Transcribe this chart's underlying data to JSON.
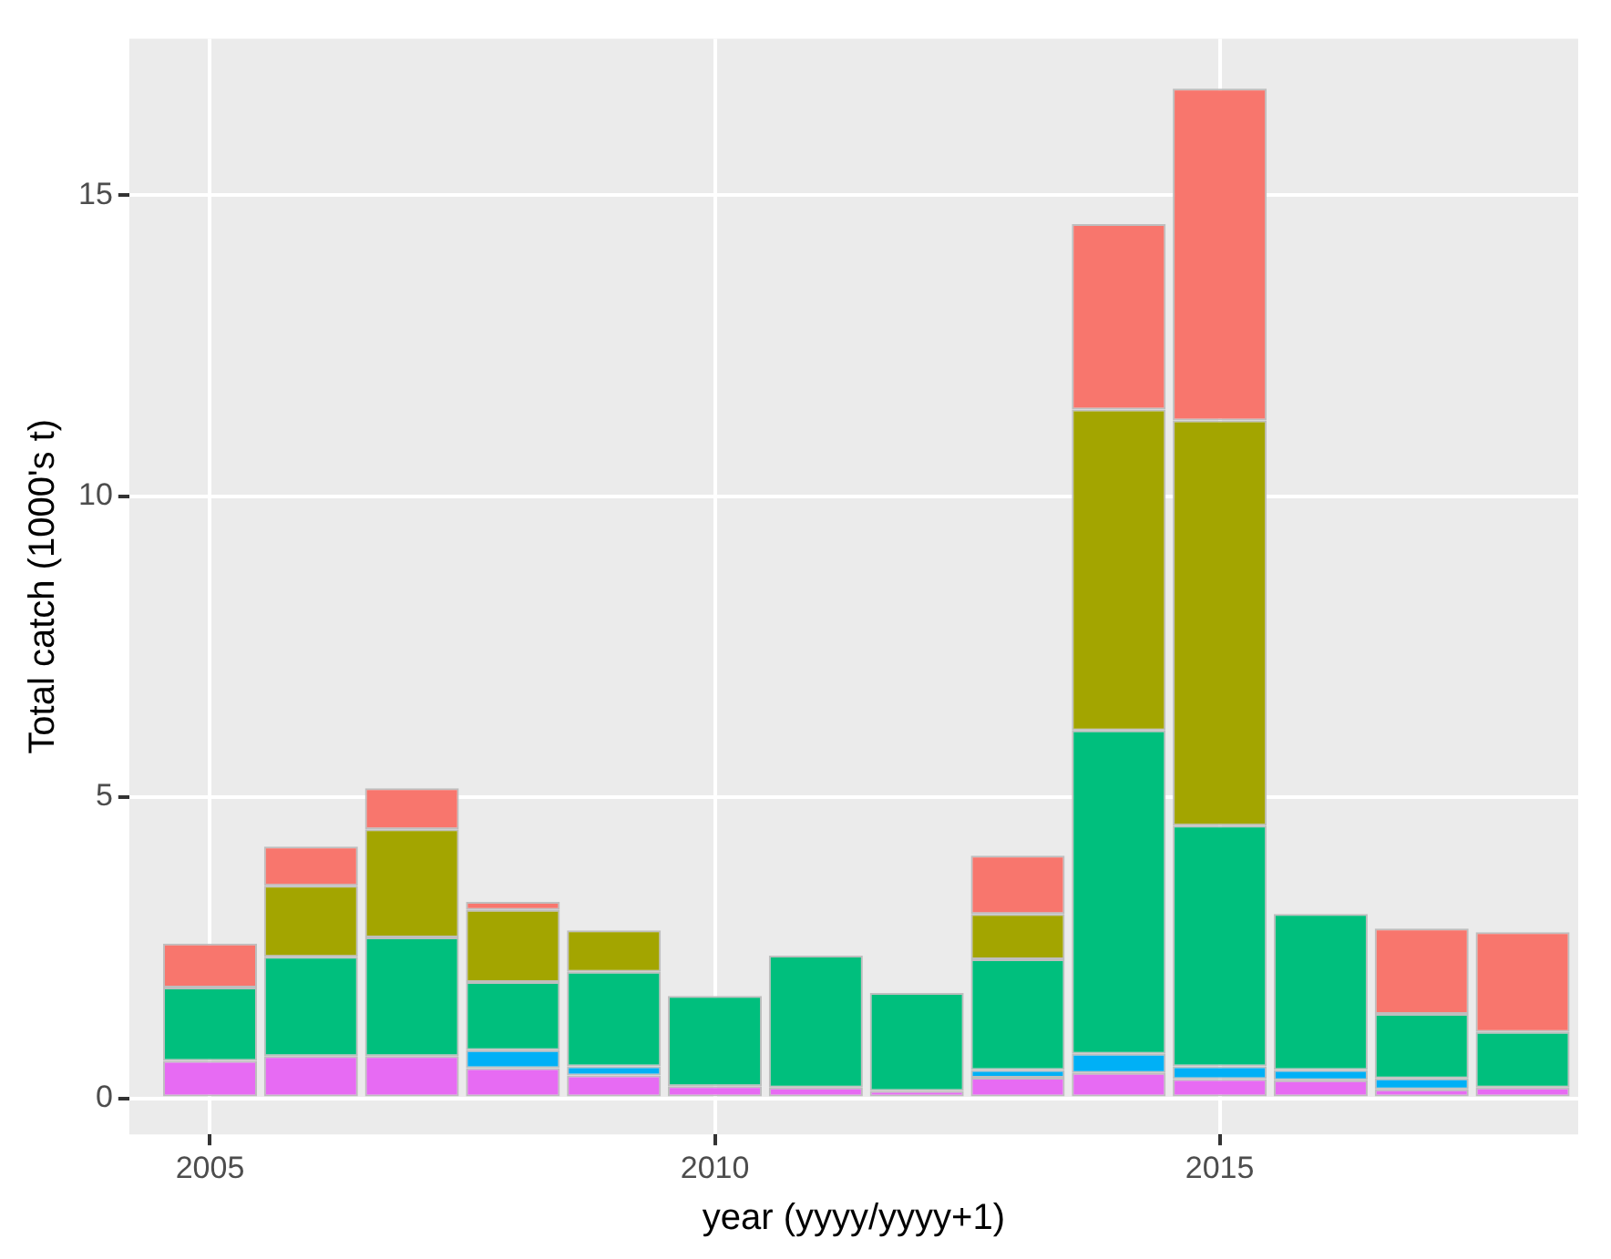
{
  "chart_data": {
    "type": "bar",
    "stacked": true,
    "xlabel": "year (yyyy/yyyy+1)",
    "ylabel": "Total catch (1000's t)",
    "x": [
      2005,
      2006,
      2007,
      2008,
      2009,
      2010,
      2011,
      2012,
      2013,
      2014,
      2015,
      2016,
      2017,
      2018
    ],
    "series": [
      {
        "color": "#e76bf3",
        "values": [
          0.62,
          0.7,
          0.7,
          0.5,
          0.38,
          0.2,
          0.18,
          0.12,
          0.34,
          0.42,
          0.32,
          0.3,
          0.15,
          0.18
        ]
      },
      {
        "color": "#00b0f6",
        "values": [
          0,
          0,
          0,
          0.3,
          0.15,
          0,
          0,
          0,
          0.13,
          0.32,
          0.21,
          0.17,
          0.18,
          0
        ]
      },
      {
        "color": "#00bf7d",
        "values": [
          1.22,
          1.65,
          1.97,
          1.13,
          1.57,
          1.5,
          2.19,
          1.63,
          1.84,
          5.37,
          4.0,
          2.59,
          1.07,
          0.92
        ]
      },
      {
        "color": "#a3a500",
        "values": [
          0,
          1.18,
          1.8,
          1.2,
          0.69,
          0,
          0,
          0,
          0.75,
          5.33,
          6.73,
          0,
          0,
          0
        ]
      },
      {
        "color": "#f8766d",
        "values": [
          0.73,
          0.65,
          0.68,
          0.13,
          0,
          0,
          0,
          0,
          0.97,
          3.08,
          5.51,
          0,
          1.42,
          1.66
        ]
      }
    ],
    "xlim": [
      2004.2,
      2018.55
    ],
    "xticks": [
      2005,
      2010,
      2015
    ],
    "ylim": [
      -0.6,
      17.6
    ],
    "yticks": [
      0,
      5,
      10,
      15
    ],
    "grid": true,
    "legend": false
  }
}
